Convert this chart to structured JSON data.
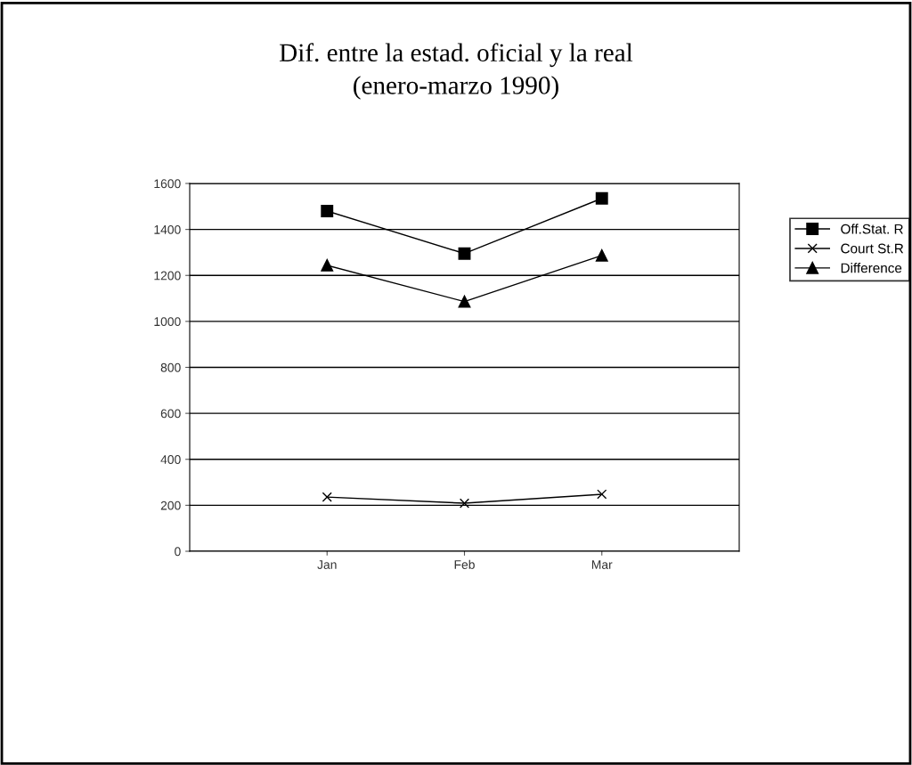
{
  "chart_data": {
    "type": "line",
    "title": "Dif. entre la estad. oficial y la real\n(enero-marzo 1990)",
    "categories": [
      "Jan",
      "Feb",
      "Mar"
    ],
    "series": [
      {
        "name": "Off.Stat. R",
        "color": "#000000",
        "marker": "square",
        "values": [
          1480,
          1295,
          1535
        ]
      },
      {
        "name": "Court St.R",
        "color": "#000000",
        "marker": "cross",
        "values": [
          236,
          209,
          248
        ]
      },
      {
        "name": "Difference",
        "color": "#000000",
        "marker": "triangle",
        "values": [
          1244,
          1086,
          1287
        ]
      }
    ],
    "ylim": [
      0,
      1600
    ],
    "yticks": [
      0,
      200,
      400,
      600,
      800,
      1000,
      1200,
      1400,
      1600
    ],
    "grid": "y",
    "legend": "right",
    "line_style": "solid"
  }
}
